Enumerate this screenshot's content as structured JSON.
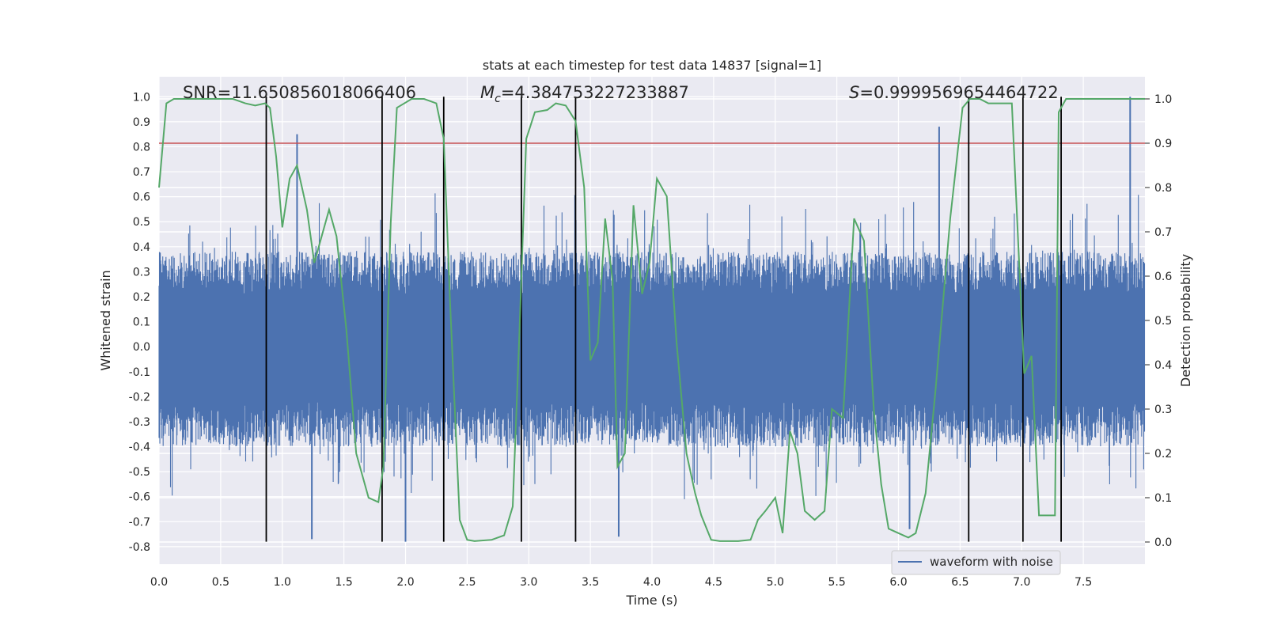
{
  "chart_data": {
    "type": "line",
    "title": "stats at each timestep for test data 14837 [signal=1]",
    "xlabel": "Time (s)",
    "ylabel": "Whitened strain",
    "y2label": "Detection probability",
    "xlim": [
      0.0,
      8.0
    ],
    "ylim": [
      -0.87,
      1.08
    ],
    "y2lim": [
      -0.05,
      1.05
    ],
    "xticks": [
      "0.0",
      "0.5",
      "1.0",
      "1.5",
      "2.0",
      "2.5",
      "3.0",
      "3.5",
      "4.0",
      "4.5",
      "5.0",
      "5.5",
      "6.0",
      "6.5",
      "7.0",
      "7.5"
    ],
    "yticks": [
      "-0.8",
      "-0.7",
      "-0.6",
      "-0.5",
      "-0.4",
      "-0.3",
      "-0.2",
      "-0.1",
      "0.0",
      "0.1",
      "0.2",
      "0.3",
      "0.4",
      "0.5",
      "0.6",
      "0.7",
      "0.8",
      "0.9",
      "1.0"
    ],
    "y2ticks": [
      "0.0",
      "0.1",
      "0.2",
      "0.3",
      "0.4",
      "0.5",
      "0.6",
      "0.7",
      "0.8",
      "0.9",
      "1.0"
    ],
    "annotations": {
      "snr": "SNR=11.650856018066406",
      "mc_prefix": "M",
      "mc_sub": "c",
      "mc_value": "=4.384753227233887",
      "s_prefix": "S",
      "s_value": "=0.9999569654464722"
    },
    "legend": {
      "label": "waveform with noise",
      "placement": "bottom-right"
    },
    "threshold": {
      "axis": "right",
      "value": 0.9,
      "color": "#c44e52"
    },
    "vertical_lines": [
      0.87,
      1.81,
      2.31,
      2.94,
      3.38,
      6.57,
      7.01,
      7.32
    ],
    "vertical_lines_range": [
      -0.78,
      1.0
    ],
    "waveform": {
      "name": "waveform with noise",
      "color": "#4c72b0",
      "axis": "left",
      "band_low": -0.4,
      "band_high": 0.38,
      "max_peak": 1.0,
      "min_peak": -0.78,
      "peaks": [
        [
          1.12,
          0.85
        ],
        [
          6.33,
          0.88
        ],
        [
          7.88,
          1.0
        ],
        [
          1.24,
          -0.77
        ],
        [
          2.0,
          -0.78
        ],
        [
          3.73,
          -0.76
        ],
        [
          6.09,
          -0.73
        ]
      ]
    },
    "series": [
      {
        "name": "detection probability",
        "color": "#55a868",
        "axis": "right",
        "x": [
          0.0,
          0.06,
          0.12,
          0.25,
          0.5,
          0.6,
          0.7,
          0.78,
          0.86,
          0.9,
          0.95,
          1.0,
          1.06,
          1.12,
          1.2,
          1.26,
          1.38,
          1.44,
          1.52,
          1.6,
          1.7,
          1.78,
          1.82,
          1.88,
          1.93,
          2.05,
          2.15,
          2.25,
          2.31,
          2.36,
          2.44,
          2.5,
          2.56,
          2.7,
          2.8,
          2.87,
          2.92,
          2.98,
          3.05,
          3.15,
          3.22,
          3.3,
          3.38,
          3.45,
          3.5,
          3.56,
          3.62,
          3.68,
          3.72,
          3.78,
          3.85,
          3.92,
          3.98,
          4.04,
          4.12,
          4.2,
          4.28,
          4.35,
          4.4,
          4.48,
          4.55,
          4.7,
          4.8,
          4.86,
          4.92,
          5.0,
          5.06,
          5.12,
          5.18,
          5.24,
          5.32,
          5.4,
          5.46,
          5.55,
          5.64,
          5.72,
          5.8,
          5.86,
          5.92,
          6.0,
          6.08,
          6.14,
          6.22,
          6.3,
          6.42,
          6.52,
          6.58,
          6.66,
          6.73,
          6.82,
          6.92,
          7.02,
          7.08,
          7.14,
          7.2,
          7.27,
          7.3,
          7.36,
          7.44,
          7.52,
          7.6,
          7.7,
          7.8,
          7.92,
          8.0
        ],
        "values": [
          0.8,
          0.99,
          1.0,
          1.0,
          1.0,
          1.0,
          0.99,
          0.985,
          0.99,
          0.98,
          0.87,
          0.71,
          0.82,
          0.85,
          0.75,
          0.63,
          0.75,
          0.69,
          0.48,
          0.2,
          0.1,
          0.09,
          0.17,
          0.72,
          0.98,
          1.0,
          1.0,
          0.99,
          0.91,
          0.55,
          0.05,
          0.005,
          0.002,
          0.005,
          0.015,
          0.08,
          0.44,
          0.91,
          0.97,
          0.975,
          0.99,
          0.985,
          0.95,
          0.8,
          0.41,
          0.45,
          0.73,
          0.59,
          0.17,
          0.2,
          0.76,
          0.56,
          0.63,
          0.82,
          0.78,
          0.45,
          0.2,
          0.11,
          0.06,
          0.005,
          0.002,
          0.002,
          0.005,
          0.05,
          0.07,
          0.1,
          0.02,
          0.25,
          0.2,
          0.07,
          0.05,
          0.07,
          0.3,
          0.28,
          0.73,
          0.68,
          0.3,
          0.13,
          0.03,
          0.02,
          0.01,
          0.02,
          0.11,
          0.34,
          0.73,
          0.98,
          1.0,
          1.0,
          0.99,
          0.99,
          0.99,
          0.38,
          0.42,
          0.06,
          0.06,
          0.06,
          0.97,
          1.0,
          1.0,
          1.0,
          1.0,
          1.0,
          1.0,
          1.0,
          1.0
        ]
      }
    ]
  }
}
